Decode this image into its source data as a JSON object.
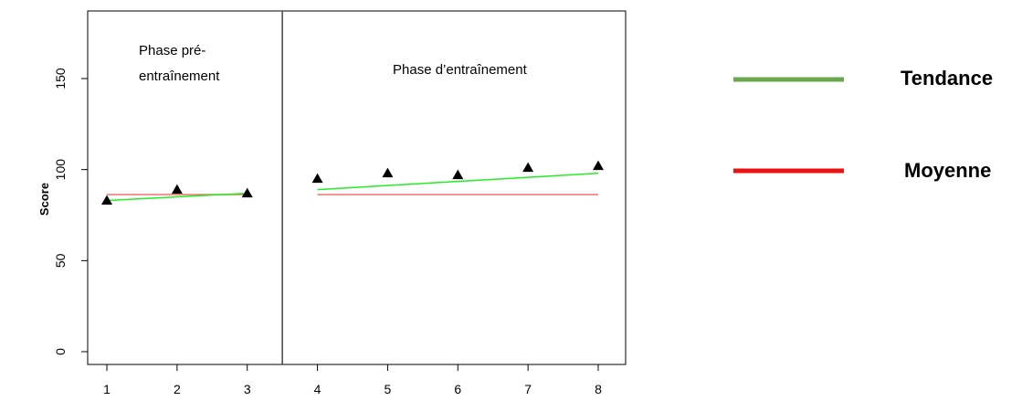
{
  "chart_data": {
    "type": "scatter",
    "x": [
      1,
      2,
      3,
      4,
      5,
      6,
      7,
      8
    ],
    "y": [
      83,
      89,
      87,
      95,
      98,
      97,
      101,
      102
    ],
    "ylabel": "Score",
    "xlim": [
      1,
      8
    ],
    "ylim": [
      0,
      180
    ],
    "x_ticks": [
      "1",
      "2",
      "3",
      "4",
      "5",
      "6",
      "7",
      "8"
    ],
    "y_ticks": [
      "0",
      "50",
      "100",
      "150"
    ],
    "phase_divider_x": 3.5,
    "phases": [
      {
        "label_line1": "Phase pré-",
        "label_line2": "entraînement"
      },
      {
        "label_line1": "Phase d’entraînement",
        "label_line2": ""
      }
    ],
    "trend_lines": [
      {
        "x": [
          1,
          3
        ],
        "y": [
          83,
          87
        ]
      },
      {
        "x": [
          4,
          8
        ],
        "y": [
          89,
          98
        ]
      }
    ],
    "mean_lines": [
      {
        "x": [
          1,
          3
        ],
        "y": [
          86.3,
          86.3
        ]
      },
      {
        "x": [
          4,
          8
        ],
        "y": [
          86.3,
          86.3
        ]
      }
    ],
    "legend": [
      {
        "label": "Tendance",
        "color": "#6aa84f"
      },
      {
        "label": "Moyenne",
        "color": "#ee1111"
      }
    ],
    "legend_placement": "right",
    "grid": false
  }
}
